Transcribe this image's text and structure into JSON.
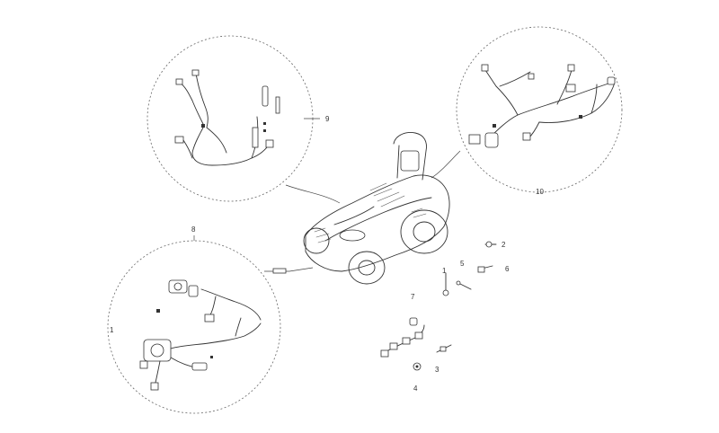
{
  "callouts": {
    "c1": "1",
    "c2": "2",
    "c3": "3",
    "c4": "4",
    "c5": "5",
    "c6": "6",
    "c7": "7",
    "c8": "8",
    "c9": "9",
    "c10": "10"
  },
  "colors": {
    "line": "#333333",
    "background": "#ffffff"
  }
}
